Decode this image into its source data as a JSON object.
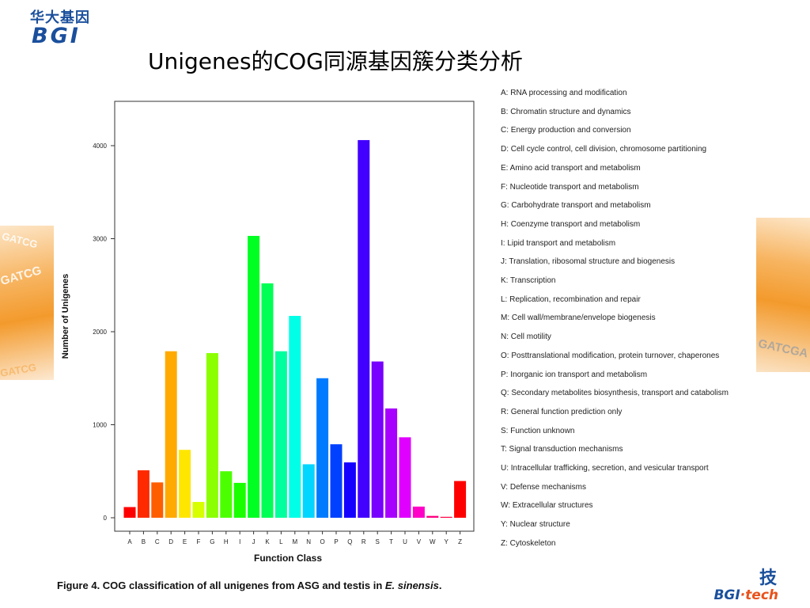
{
  "header": {
    "logo_cn": "华大基因",
    "logo_en": "BGI",
    "title": "Unigenes的COG同源基因簇分类分析"
  },
  "decor": {
    "wave_text_1": "GATCG",
    "wave_text_2": "GATCG",
    "wave_text_3": "GATCG",
    "wave_text_4": "GATCGA"
  },
  "footer": {
    "logo_cn": "技",
    "logo_en_a": "BGI",
    "logo_en_b": "·tech"
  },
  "figure": {
    "caption_prefix": "Figure 4. COG classification of all unigenes from ASG and testis in ",
    "caption_species": "E. sinensis",
    "caption_suffix": "."
  },
  "chart_data": {
    "type": "bar",
    "title": "",
    "xlabel": "Function Class",
    "ylabel": "Number of Unigenes",
    "ylim": [
      0,
      4400
    ],
    "yticks": [
      0,
      1000,
      2000,
      3000,
      4000
    ],
    "grid": false,
    "categories": [
      "A",
      "B",
      "C",
      "D",
      "E",
      "F",
      "G",
      "H",
      "I",
      "J",
      "K",
      "L",
      "M",
      "N",
      "O",
      "P",
      "Q",
      "R",
      "S",
      "T",
      "U",
      "V",
      "W",
      "Y",
      "Z"
    ],
    "values": [
      115,
      510,
      380,
      1790,
      730,
      170,
      1770,
      500,
      375,
      3030,
      2520,
      1790,
      2170,
      575,
      1500,
      790,
      595,
      4060,
      1680,
      1175,
      865,
      120,
      20,
      10,
      395
    ],
    "colors": [
      "#ff0000",
      "#ff2a00",
      "#ff5e00",
      "#ffaa00",
      "#ffe600",
      "#d8ff00",
      "#8cff00",
      "#4cff00",
      "#1aff00",
      "#00ff22",
      "#00ff55",
      "#00ff9e",
      "#00ffe6",
      "#00d6ff",
      "#007bff",
      "#0040ff",
      "#1400ff",
      "#4200ff",
      "#7700ff",
      "#a800ff",
      "#e000ff",
      "#ff00c8",
      "#ff0080",
      "#ff0040",
      "#ff0000"
    ],
    "legend": [
      "A: RNA processing and modification",
      "B: Chromatin structure and dynamics",
      "C: Energy production and conversion",
      "D: Cell cycle control, cell division, chromosome partitioning",
      "E: Amino acid transport and metabolism",
      "F: Nucleotide transport and metabolism",
      "G: Carbohydrate transport and metabolism",
      "H: Coenzyme transport and metabolism",
      "I: Lipid transport and metabolism",
      "J: Translation, ribosomal structure and biogenesis",
      "K: Transcription",
      "L: Replication, recombination and repair",
      "M: Cell wall/membrane/envelope biogenesis",
      "N: Cell motility",
      "O: Posttranslational modification, protein turnover, chaperones",
      "P: Inorganic ion transport and metabolism",
      "Q: Secondary metabolites biosynthesis, transport and catabolism",
      "R: General function prediction only",
      "S: Function unknown",
      "T: Signal transduction mechanisms",
      "U: Intracellular trafficking, secretion, and vesicular transport",
      "V: Defense mechanisms",
      "W: Extracellular structures",
      "Y: Nuclear structure",
      "Z: Cytoskeleton"
    ],
    "legend_placement": "right"
  }
}
